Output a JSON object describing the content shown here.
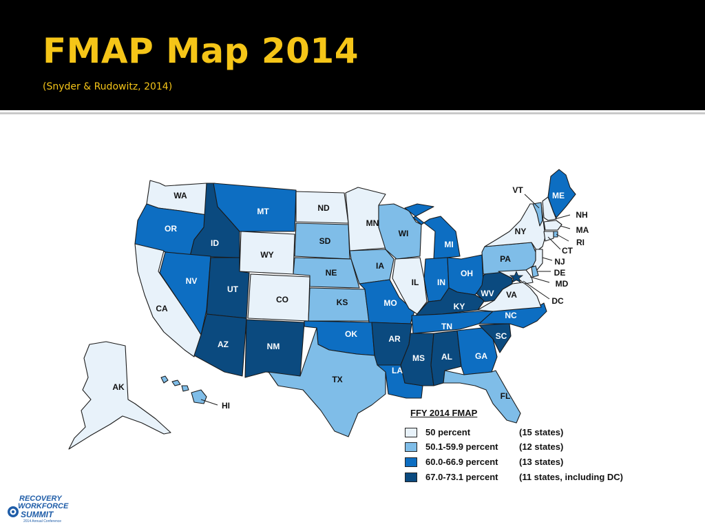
{
  "slide": {
    "title": "FMAP Map 2014",
    "subtitle": "(Snyder & Rudowitz, 2014)"
  },
  "colors": {
    "header_bg": "#000000",
    "title": "#f5c518",
    "tier1": "#e8f2fa",
    "tier2": "#7fbde8",
    "tier3": "#0d6ec2",
    "tier4": "#0b4a7f"
  },
  "legend": {
    "title": "FFY 2014 FMAP",
    "items": [
      {
        "label": "50 percent",
        "count": "(15 states)",
        "color": "#e8f2fa"
      },
      {
        "label": "50.1-59.9 percent",
        "count": "(12 states)",
        "color": "#7fbde8"
      },
      {
        "label": "60.0-66.9 percent",
        "count": "(13 states)",
        "color": "#0d6ec2"
      },
      {
        "label": "67.0-73.1 percent",
        "count": "(11 states, including DC)",
        "color": "#0b4a7f"
      }
    ]
  },
  "map": {
    "states": [
      {
        "id": "WA",
        "tier": 1
      },
      {
        "id": "OR",
        "tier": 3
      },
      {
        "id": "CA",
        "tier": 1
      },
      {
        "id": "ID",
        "tier": 4
      },
      {
        "id": "NV",
        "tier": 3
      },
      {
        "id": "MT",
        "tier": 3
      },
      {
        "id": "WY",
        "tier": 1
      },
      {
        "id": "UT",
        "tier": 4
      },
      {
        "id": "CO",
        "tier": 1
      },
      {
        "id": "AZ",
        "tier": 4
      },
      {
        "id": "NM",
        "tier": 4
      },
      {
        "id": "ND",
        "tier": 1
      },
      {
        "id": "SD",
        "tier": 2
      },
      {
        "id": "NE",
        "tier": 2
      },
      {
        "id": "KS",
        "tier": 2
      },
      {
        "id": "OK",
        "tier": 3
      },
      {
        "id": "TX",
        "tier": 2
      },
      {
        "id": "MN",
        "tier": 1
      },
      {
        "id": "IA",
        "tier": 2
      },
      {
        "id": "MO",
        "tier": 3
      },
      {
        "id": "AR",
        "tier": 4
      },
      {
        "id": "LA",
        "tier": 3
      },
      {
        "id": "WI",
        "tier": 2
      },
      {
        "id": "IL",
        "tier": 1
      },
      {
        "id": "MI",
        "tier": 3
      },
      {
        "id": "IN",
        "tier": 3
      },
      {
        "id": "OH",
        "tier": 3
      },
      {
        "id": "KY",
        "tier": 4
      },
      {
        "id": "TN",
        "tier": 3
      },
      {
        "id": "MS",
        "tier": 4
      },
      {
        "id": "AL",
        "tier": 4
      },
      {
        "id": "GA",
        "tier": 3
      },
      {
        "id": "FL",
        "tier": 2
      },
      {
        "id": "SC",
        "tier": 4
      },
      {
        "id": "NC",
        "tier": 3
      },
      {
        "id": "VA",
        "tier": 1
      },
      {
        "id": "WV",
        "tier": 4
      },
      {
        "id": "PA",
        "tier": 2
      },
      {
        "id": "NY",
        "tier": 1
      },
      {
        "id": "VT",
        "tier": 2
      },
      {
        "id": "NH",
        "tier": 1
      },
      {
        "id": "ME",
        "tier": 3
      },
      {
        "id": "MA",
        "tier": 1
      },
      {
        "id": "RI",
        "tier": 2
      },
      {
        "id": "CT",
        "tier": 1
      },
      {
        "id": "NJ",
        "tier": 1
      },
      {
        "id": "DE",
        "tier": 2
      },
      {
        "id": "MD",
        "tier": 1
      },
      {
        "id": "DC",
        "tier": 4
      },
      {
        "id": "AK",
        "tier": 1
      },
      {
        "id": "HI",
        "tier": 2
      }
    ]
  },
  "logo": {
    "line1": "RECOVERY",
    "line2": "WORKFORCE",
    "line3": "SUMMIT",
    "line4": "2014 Annual Conference"
  }
}
